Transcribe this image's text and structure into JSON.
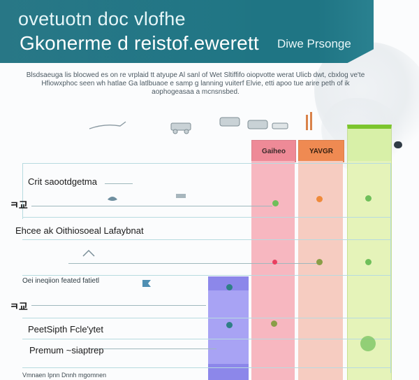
{
  "header": {
    "title_line_1": "ovetuotn doc vlofhe",
    "title_line_2": "Gkonerme d reistof.ewerett",
    "title_tail": "Diwe Prsonge",
    "accent_color": "#1f7584"
  },
  "intro": {
    "text": "Blsdsaeuga lis blocwed es on re vrplaid tt atyupe Al sanl of Wet Sltiffifo oiopvotte werat Ulicb dwt, cbxlog ve'te Hfiowxphoc seen wh hatlae Ga latlbuaoe e samp g lanning vuiterf Elvie, etti apoo tue arire peth of ik aophogeasaa a mcnsnsbed."
  },
  "columns": {
    "pink": {
      "label": "Gaiheo",
      "color": "#ee8a97"
    },
    "orange": {
      "label": "YAVGR",
      "color": "#ef8a52"
    },
    "green": {
      "label": "",
      "color": "#d8f0a8"
    }
  },
  "rows": [
    {
      "label": "Crit saootdgetma"
    },
    {
      "label": "ㅋ교"
    },
    {
      "label": "Ehcee ak Oithiosoeal Lafaybnat"
    },
    {
      "label": "Oei ineqiion feated fatietl"
    },
    {
      "label": "ㅋ교"
    },
    {
      "label": "PeetSipth Fcle'ytet"
    },
    {
      "label": "Premum ~siaptrep"
    }
  ],
  "footer": {
    "label": "Vmnaen   Ipnn   Dnnh mgomnen"
  },
  "icons": {
    "strip": [
      "hand-icon",
      "car-icon",
      "car-icon",
      "car-icon",
      "tool-icon",
      "flame-icon"
    ],
    "row_icons": [
      "bird-icon",
      "tool-icon",
      "bird-icon",
      "flag-icon"
    ]
  }
}
